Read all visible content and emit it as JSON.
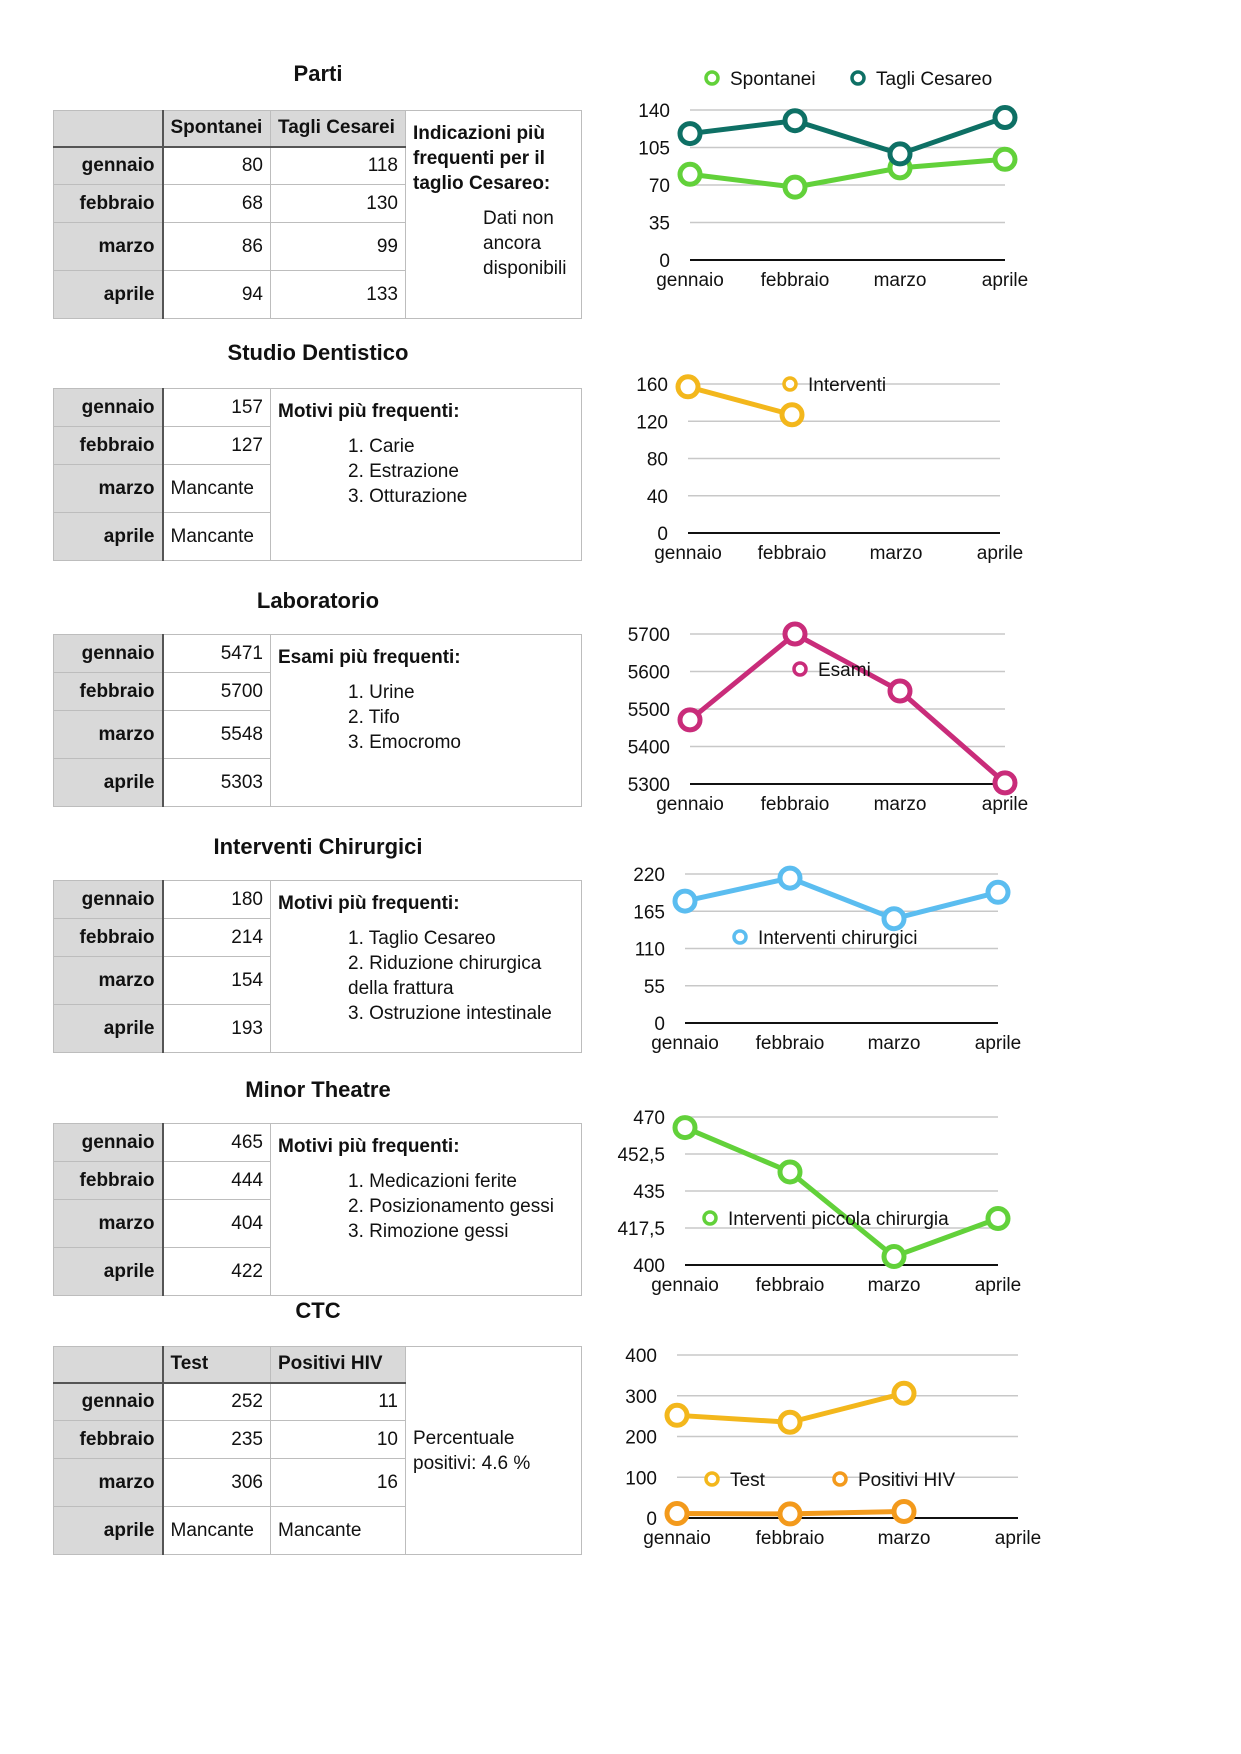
{
  "sections": [
    {
      "title": "Parti",
      "columns": [
        "Spontanei",
        "Tagli Cesarei"
      ],
      "rows": [
        {
          "label": "gennaio",
          "cells": [
            "80",
            "118"
          ]
        },
        {
          "label": "febbraio",
          "cells": [
            "68",
            "130"
          ]
        },
        {
          "label": "marzo",
          "cells": [
            "86",
            "99"
          ]
        },
        {
          "label": "aprile",
          "cells": [
            "94",
            "133"
          ]
        }
      ],
      "note_title": "Indicazioni più frequenti per il taglio Cesareo:",
      "note_lines": [
        "Dati non",
        "ancora",
        "disponibili"
      ]
    },
    {
      "title": "Studio Dentistico",
      "rows": [
        {
          "label": "gennaio",
          "cells": [
            "157"
          ]
        },
        {
          "label": "febbraio",
          "cells": [
            "127"
          ]
        },
        {
          "label": "marzo",
          "cells": [
            "Mancante"
          ]
        },
        {
          "label": "aprile",
          "cells": [
            "Mancante"
          ]
        }
      ],
      "note_title": "Motivi più frequenti:",
      "note_lines": [
        "1. Carie",
        "2. Estrazione",
        "3. Otturazione"
      ]
    },
    {
      "title": "Laboratorio",
      "rows": [
        {
          "label": "gennaio",
          "cells": [
            "5471"
          ]
        },
        {
          "label": "febbraio",
          "cells": [
            "5700"
          ]
        },
        {
          "label": "marzo",
          "cells": [
            "5548"
          ]
        },
        {
          "label": "aprile",
          "cells": [
            "5303"
          ]
        }
      ],
      "note_title": "Esami più frequenti:",
      "note_lines": [
        "1. Urine",
        "2. Tifo",
        "3. Emocromo"
      ]
    },
    {
      "title": "Interventi Chirurgici",
      "rows": [
        {
          "label": "gennaio",
          "cells": [
            "180"
          ]
        },
        {
          "label": "febbraio",
          "cells": [
            "214"
          ]
        },
        {
          "label": "marzo",
          "cells": [
            "154"
          ]
        },
        {
          "label": "aprile",
          "cells": [
            "193"
          ]
        }
      ],
      "note_title": "Motivi più frequenti:",
      "note_lines": [
        "1. Taglio Cesareo",
        "2. Riduzione chirurgica della frattura",
        "3. Ostruzione intestinale"
      ]
    },
    {
      "title": "Minor Theatre",
      "rows": [
        {
          "label": "gennaio",
          "cells": [
            "465"
          ]
        },
        {
          "label": "febbraio",
          "cells": [
            "444"
          ]
        },
        {
          "label": "marzo",
          "cells": [
            "404"
          ]
        },
        {
          "label": "aprile",
          "cells": [
            "422"
          ]
        }
      ],
      "note_title": "Motivi più frequenti:",
      "note_lines": [
        "1. Medicazioni ferite",
        "2. Posizionamento gessi",
        "3. Rimozione gessi"
      ]
    },
    {
      "title": "CTC",
      "columns": [
        "Test",
        "Positivi HIV"
      ],
      "rows": [
        {
          "label": "gennaio",
          "cells": [
            "252",
            "11"
          ]
        },
        {
          "label": "febbraio",
          "cells": [
            "235",
            "10"
          ]
        },
        {
          "label": "marzo",
          "cells": [
            "306",
            "16"
          ]
        },
        {
          "label": "aprile",
          "cells": [
            "Mancante",
            "Mancante"
          ]
        }
      ],
      "note_title": "",
      "note_lines": [
        "Percentuale positivi: 4.6 %"
      ]
    }
  ],
  "chart_data": [
    {
      "type": "line",
      "categories": [
        "gennaio",
        "febbraio",
        "marzo",
        "aprile"
      ],
      "series": [
        {
          "name": "Spontanei",
          "values": [
            80,
            68,
            86,
            94
          ],
          "color": "#62d13a"
        },
        {
          "name": "Tagli Cesareo",
          "values": [
            118,
            130,
            99,
            133
          ],
          "color": "#0e7065"
        }
      ],
      "yticks": [
        "0",
        "35",
        "70",
        "105",
        "140"
      ],
      "ylim": [
        0,
        140
      ],
      "grid": true,
      "legend": "top"
    },
    {
      "type": "line",
      "categories": [
        "gennaio",
        "febbraio",
        "marzo",
        "aprile"
      ],
      "series": [
        {
          "name": "Interventi",
          "values": [
            157,
            127,
            null,
            null
          ],
          "color": "#f3b71c"
        }
      ],
      "yticks": [
        "0",
        "40",
        "80",
        "120",
        "160"
      ],
      "ylim": [
        0,
        160
      ],
      "grid": true,
      "legend": "top"
    },
    {
      "type": "line",
      "categories": [
        "gennaio",
        "febbraio",
        "marzo",
        "aprile"
      ],
      "series": [
        {
          "name": "Esami",
          "values": [
            5471,
            5700,
            5548,
            5303
          ],
          "color": "#c92c7a"
        }
      ],
      "yticks": [
        "5300",
        "5400",
        "5500",
        "5600",
        "5700"
      ],
      "ylim": [
        5300,
        5700
      ],
      "grid": true,
      "legend": "top"
    },
    {
      "type": "line",
      "categories": [
        "gennaio",
        "febbraio",
        "marzo",
        "aprile"
      ],
      "series": [
        {
          "name": "Interventi chirurgici",
          "values": [
            180,
            214,
            154,
            193
          ],
          "color": "#5bbdf0"
        }
      ],
      "yticks": [
        "0",
        "55",
        "110",
        "165",
        "220"
      ],
      "ylim": [
        0,
        220
      ],
      "grid": true,
      "legend": "top"
    },
    {
      "type": "line",
      "categories": [
        "gennaio",
        "febbraio",
        "marzo",
        "aprile"
      ],
      "series": [
        {
          "name": "Interventi piccola chirurgia",
          "values": [
            465,
            444,
            404,
            422
          ],
          "color": "#62d13a"
        }
      ],
      "yticks": [
        "400",
        "417,5",
        "435",
        "452,5",
        "470"
      ],
      "ylim": [
        400,
        470
      ],
      "grid": true,
      "legend": "top"
    },
    {
      "type": "line",
      "categories": [
        "gennaio",
        "febbraio",
        "marzo",
        "aprile"
      ],
      "series": [
        {
          "name": "Test",
          "values": [
            252,
            235,
            306,
            null
          ],
          "color": "#f3b71c"
        },
        {
          "name": "Positivi HIV",
          "values": [
            11,
            10,
            16,
            null
          ],
          "color": "#f39a1c"
        }
      ],
      "yticks": [
        "0",
        "100",
        "200",
        "300",
        "400"
      ],
      "ylim": [
        0,
        400
      ],
      "grid": true,
      "legend": "top"
    }
  ]
}
